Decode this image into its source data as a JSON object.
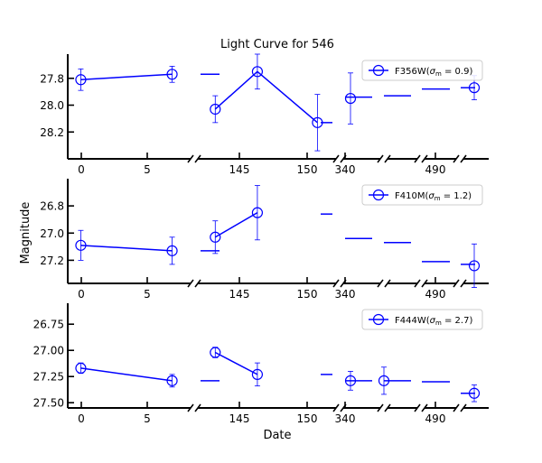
{
  "chart_data": {
    "type": "scatter",
    "title": "Light Curve for 546",
    "xlabel": "Date",
    "ylabel": "Magnitude",
    "y_inverted": true,
    "x_axis_broken": true,
    "x_segments": [
      {
        "ticks": [
          0,
          5
        ]
      },
      {
        "ticks": []
      },
      {
        "ticks": [
          145
        ]
      },
      {
        "ticks": [
          150
        ]
      },
      {
        "ticks": [
          340
        ]
      },
      {
        "ticks": []
      },
      {
        "ticks": []
      },
      {
        "ticks": [
          490
        ]
      },
      {
        "ticks": []
      }
    ],
    "x_tick_labels": [
      "0",
      "5",
      "145",
      "150",
      "340",
      "490"
    ],
    "legend_placement": "top-right",
    "series_color": "#0000ff",
    "panels": [
      {
        "legend": "F356W(σm = 0.9)",
        "legend_main": "F356W(",
        "legend_sigma": "σ",
        "legend_sub": "m",
        "legend_rest": " = 0.9)",
        "ylim": [
          28.4,
          27.62
        ],
        "yticks": [
          "27.8",
          "28.0",
          "28.2"
        ],
        "ytick_values": [
          27.8,
          28.0,
          28.2
        ],
        "points": [
          {
            "segment": 0,
            "x": 0,
            "y": 27.81,
            "yerr": 0.08
          },
          {
            "segment": 0,
            "x": 7,
            "y": 27.77,
            "yerr": 0.06
          },
          {
            "segment": 2,
            "x": 143.5,
            "y": 28.03,
            "yerr": 0.1
          },
          {
            "segment": 3,
            "x": 147.0,
            "y": 27.75,
            "yerr": 0.13
          },
          {
            "segment": 3,
            "x": 151.0,
            "y": 28.13,
            "yerr": 0.21
          },
          {
            "segment": 4,
            "x": 341.0,
            "y": 27.95,
            "yerr": 0.19
          },
          {
            "segment": 8,
            "x": 493.0,
            "y": 27.87,
            "yerr": 0.09
          }
        ],
        "dash_levels": [
          27.77,
          28.13,
          27.94,
          27.93,
          27.88,
          27.87
        ]
      },
      {
        "legend": "F410M(σm = 1.2)",
        "legend_main": "F410M(",
        "legend_sigma": "σ",
        "legend_sub": "m",
        "legend_rest": " = 1.2)",
        "ylim": [
          27.37,
          26.6
        ],
        "yticks": [
          "26.8",
          "27.0",
          "27.2"
        ],
        "ytick_values": [
          26.8,
          27.0,
          27.2
        ],
        "points": [
          {
            "segment": 0,
            "x": 0,
            "y": 27.09,
            "yerr": 0.11
          },
          {
            "segment": 0,
            "x": 7,
            "y": 27.13,
            "yerr": 0.1
          },
          {
            "segment": 2,
            "x": 143.5,
            "y": 27.03,
            "yerr": 0.12
          },
          {
            "segment": 3,
            "x": 147.0,
            "y": 26.85,
            "yerr": 0.2
          },
          {
            "segment": 8,
            "x": 493.0,
            "y": 27.24,
            "yerr": 0.16
          }
        ],
        "dash_levels": [
          27.13,
          26.86,
          27.04,
          27.07,
          27.21,
          27.23
        ]
      },
      {
        "legend": "F444W(σm = 2.7)",
        "legend_main": "F444W(",
        "legend_sigma": "σ",
        "legend_sub": "m",
        "legend_rest": " = 2.7)",
        "ylim": [
          27.55,
          26.55
        ],
        "yticks": [
          "26.75",
          "27.00",
          "27.25",
          "27.50"
        ],
        "ytick_values": [
          26.75,
          27.0,
          27.25,
          27.5
        ],
        "points": [
          {
            "segment": 0,
            "x": 0,
            "y": 27.17,
            "yerr": 0.05
          },
          {
            "segment": 0,
            "x": 7,
            "y": 27.29,
            "yerr": 0.06
          },
          {
            "segment": 2,
            "x": 143.5,
            "y": 27.02,
            "yerr": 0.05
          },
          {
            "segment": 3,
            "x": 147.0,
            "y": 27.23,
            "yerr": 0.11
          },
          {
            "segment": 4,
            "x": 341.0,
            "y": 27.29,
            "yerr": 0.09
          },
          {
            "segment": 5,
            "x": 0,
            "y": 27.29,
            "yerr": 0.13
          },
          {
            "segment": 8,
            "x": 493.0,
            "y": 27.41,
            "yerr": 0.08
          }
        ],
        "dash_levels": [
          27.29,
          27.23,
          27.29,
          27.29,
          27.3,
          27.41
        ]
      }
    ]
  }
}
